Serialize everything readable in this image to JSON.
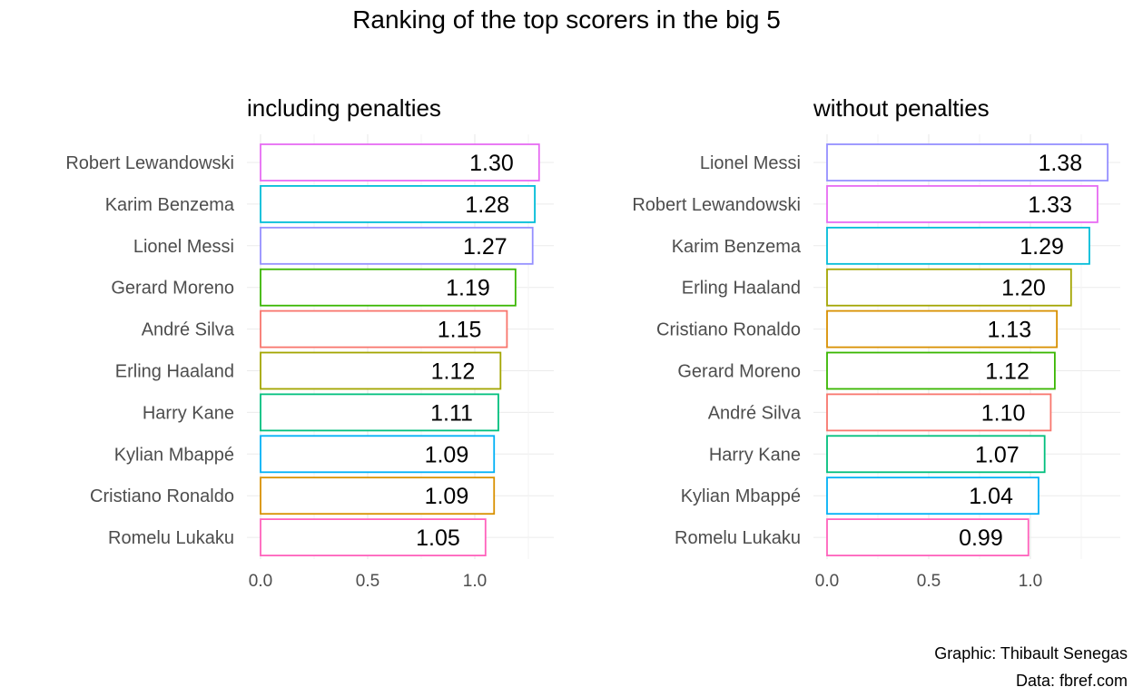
{
  "title": "Ranking of the top scorers in the big 5",
  "caption_graphic": "Graphic: Thibault Senegas",
  "caption_data": "Data: fbref.com",
  "colors": {
    "Robert Lewandowski": "#e76bf3",
    "Karim Benzema": "#00bcd8",
    "Lionel Messi": "#9590ff",
    "Gerard Moreno": "#39b600",
    "André Silva": "#f8766d",
    "Erling Haaland": "#a3a500",
    "Harry Kane": "#00bf7d",
    "Kylian Mbappé": "#00b0f6",
    "Cristiano Ronaldo": "#d89000",
    "Romelu Lukaku": "#ff62bc"
  },
  "chart_data": [
    {
      "type": "bar",
      "orientation": "horizontal",
      "title": "including penalties",
      "xlim": [
        0,
        1.3
      ],
      "xticks": [
        "0.0",
        "0.5",
        "1.0"
      ],
      "categories": [
        "Robert Lewandowski",
        "Karim Benzema",
        "Lionel Messi",
        "Gerard Moreno",
        "André Silva",
        "Erling Haaland",
        "Harry Kane",
        "Kylian Mbappé",
        "Cristiano Ronaldo",
        "Romelu Lukaku"
      ],
      "values": [
        1.3,
        1.28,
        1.27,
        1.19,
        1.15,
        1.12,
        1.11,
        1.09,
        1.09,
        1.05
      ],
      "labels": [
        "1.30",
        "1.28",
        "1.27",
        "1.19",
        "1.15",
        "1.12",
        "1.11",
        "1.09",
        "1.09",
        "1.05"
      ],
      "grid": true
    },
    {
      "type": "bar",
      "orientation": "horizontal",
      "title": "without penalties",
      "xlim": [
        0,
        1.38
      ],
      "xticks": [
        "0.0",
        "0.5",
        "1.0"
      ],
      "categories": [
        "Lionel Messi",
        "Robert Lewandowski",
        "Karim Benzema",
        "Erling Haaland",
        "Cristiano Ronaldo",
        "Gerard Moreno",
        "André Silva",
        "Harry Kane",
        "Kylian Mbappé",
        "Romelu Lukaku"
      ],
      "values": [
        1.38,
        1.33,
        1.29,
        1.2,
        1.13,
        1.12,
        1.1,
        1.07,
        1.04,
        0.99
      ],
      "labels": [
        "1.38",
        "1.33",
        "1.29",
        "1.20",
        "1.13",
        "1.12",
        "1.10",
        "1.07",
        "1.04",
        "0.99"
      ],
      "grid": true
    }
  ]
}
